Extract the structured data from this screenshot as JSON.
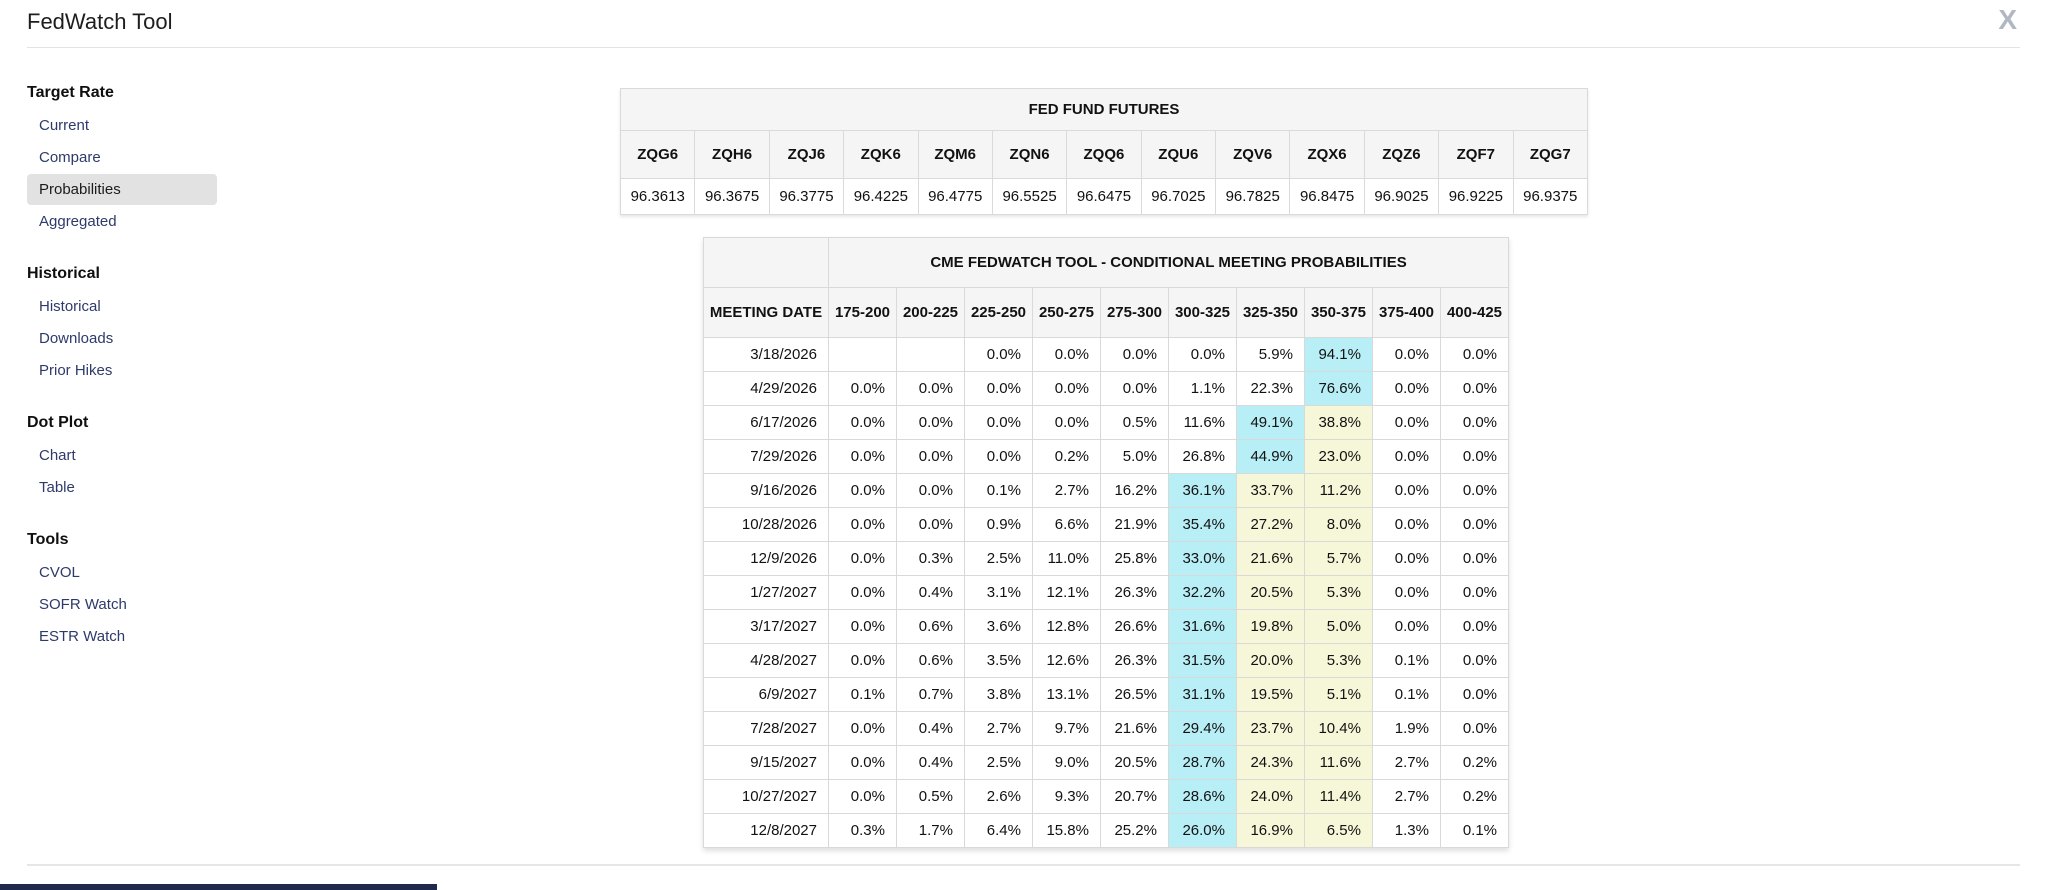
{
  "header": {
    "title": "FedWatch Tool",
    "close_label": "X"
  },
  "sidebar": {
    "sections": [
      {
        "heading": "Target Rate",
        "items": [
          {
            "label": "Current",
            "active": false
          },
          {
            "label": "Compare",
            "active": false
          },
          {
            "label": "Probabilities",
            "active": true
          },
          {
            "label": "Aggregated",
            "active": false
          }
        ]
      },
      {
        "heading": "Historical",
        "items": [
          {
            "label": "Historical",
            "active": false
          },
          {
            "label": "Downloads",
            "active": false
          },
          {
            "label": "Prior Hikes",
            "active": false
          }
        ]
      },
      {
        "heading": "Dot Plot",
        "items": [
          {
            "label": "Chart",
            "active": false
          },
          {
            "label": "Table",
            "active": false
          }
        ]
      },
      {
        "heading": "Tools",
        "items": [
          {
            "label": "CVOL",
            "active": false
          },
          {
            "label": "SOFR Watch",
            "active": false
          },
          {
            "label": "ESTR Watch",
            "active": false
          }
        ]
      }
    ]
  },
  "futures": {
    "title": "FED FUND FUTURES",
    "contracts": [
      "ZQG6",
      "ZQH6",
      "ZQJ6",
      "ZQK6",
      "ZQM6",
      "ZQN6",
      "ZQQ6",
      "ZQU6",
      "ZQV6",
      "ZQX6",
      "ZQZ6",
      "ZQF7",
      "ZQG7"
    ],
    "prices": [
      "96.3613",
      "96.3675",
      "96.3775",
      "96.4225",
      "96.4775",
      "96.5525",
      "96.6475",
      "96.7025",
      "96.7825",
      "96.8475",
      "96.9025",
      "96.9225",
      "96.9375"
    ]
  },
  "probabilities": {
    "title": "CME FEDWATCH TOOL - CONDITIONAL MEETING PROBABILITIES",
    "date_header": "MEETING DATE",
    "range_headers": [
      "175-200",
      "200-225",
      "225-250",
      "250-275",
      "275-300",
      "300-325",
      "325-350",
      "350-375",
      "375-400",
      "400-425"
    ],
    "rows": [
      {
        "date": "3/18/2026",
        "values": [
          "",
          "",
          "0.0%",
          "0.0%",
          "0.0%",
          "0.0%",
          "5.9%",
          "94.1%",
          "0.0%",
          "0.0%"
        ],
        "highlights": [
          "",
          "",
          "",
          "",
          "",
          "",
          "",
          "cyan",
          "",
          ""
        ]
      },
      {
        "date": "4/29/2026",
        "values": [
          "0.0%",
          "0.0%",
          "0.0%",
          "0.0%",
          "0.0%",
          "1.1%",
          "22.3%",
          "76.6%",
          "0.0%",
          "0.0%"
        ],
        "highlights": [
          "",
          "",
          "",
          "",
          "",
          "",
          "",
          "cyan",
          "",
          ""
        ]
      },
      {
        "date": "6/17/2026",
        "values": [
          "0.0%",
          "0.0%",
          "0.0%",
          "0.0%",
          "0.5%",
          "11.6%",
          "49.1%",
          "38.8%",
          "0.0%",
          "0.0%"
        ],
        "highlights": [
          "",
          "",
          "",
          "",
          "",
          "",
          "cyan",
          "yellow",
          "",
          ""
        ]
      },
      {
        "date": "7/29/2026",
        "values": [
          "0.0%",
          "0.0%",
          "0.0%",
          "0.2%",
          "5.0%",
          "26.8%",
          "44.9%",
          "23.0%",
          "0.0%",
          "0.0%"
        ],
        "highlights": [
          "",
          "",
          "",
          "",
          "",
          "",
          "cyan",
          "yellow",
          "",
          ""
        ]
      },
      {
        "date": "9/16/2026",
        "values": [
          "0.0%",
          "0.0%",
          "0.1%",
          "2.7%",
          "16.2%",
          "36.1%",
          "33.7%",
          "11.2%",
          "0.0%",
          "0.0%"
        ],
        "highlights": [
          "",
          "",
          "",
          "",
          "",
          "cyan",
          "yellow",
          "yellow",
          "",
          ""
        ]
      },
      {
        "date": "10/28/2026",
        "values": [
          "0.0%",
          "0.0%",
          "0.9%",
          "6.6%",
          "21.9%",
          "35.4%",
          "27.2%",
          "8.0%",
          "0.0%",
          "0.0%"
        ],
        "highlights": [
          "",
          "",
          "",
          "",
          "",
          "cyan",
          "yellow",
          "yellow",
          "",
          ""
        ]
      },
      {
        "date": "12/9/2026",
        "values": [
          "0.0%",
          "0.3%",
          "2.5%",
          "11.0%",
          "25.8%",
          "33.0%",
          "21.6%",
          "5.7%",
          "0.0%",
          "0.0%"
        ],
        "highlights": [
          "",
          "",
          "",
          "",
          "",
          "cyan",
          "yellow",
          "yellow",
          "",
          ""
        ]
      },
      {
        "date": "1/27/2027",
        "values": [
          "0.0%",
          "0.4%",
          "3.1%",
          "12.1%",
          "26.3%",
          "32.2%",
          "20.5%",
          "5.3%",
          "0.0%",
          "0.0%"
        ],
        "highlights": [
          "",
          "",
          "",
          "",
          "",
          "cyan",
          "yellow",
          "yellow",
          "",
          ""
        ]
      },
      {
        "date": "3/17/2027",
        "values": [
          "0.0%",
          "0.6%",
          "3.6%",
          "12.8%",
          "26.6%",
          "31.6%",
          "19.8%",
          "5.0%",
          "0.0%",
          "0.0%"
        ],
        "highlights": [
          "",
          "",
          "",
          "",
          "",
          "cyan",
          "yellow",
          "yellow",
          "",
          ""
        ]
      },
      {
        "date": "4/28/2027",
        "values": [
          "0.0%",
          "0.6%",
          "3.5%",
          "12.6%",
          "26.3%",
          "31.5%",
          "20.0%",
          "5.3%",
          "0.1%",
          "0.0%"
        ],
        "highlights": [
          "",
          "",
          "",
          "",
          "",
          "cyan",
          "yellow",
          "yellow",
          "",
          ""
        ]
      },
      {
        "date": "6/9/2027",
        "values": [
          "0.1%",
          "0.7%",
          "3.8%",
          "13.1%",
          "26.5%",
          "31.1%",
          "19.5%",
          "5.1%",
          "0.1%",
          "0.0%"
        ],
        "highlights": [
          "",
          "",
          "",
          "",
          "",
          "cyan",
          "yellow",
          "yellow",
          "",
          ""
        ]
      },
      {
        "date": "7/28/2027",
        "values": [
          "0.0%",
          "0.4%",
          "2.7%",
          "9.7%",
          "21.6%",
          "29.4%",
          "23.7%",
          "10.4%",
          "1.9%",
          "0.0%"
        ],
        "highlights": [
          "",
          "",
          "",
          "",
          "",
          "cyan",
          "yellow",
          "yellow",
          "",
          ""
        ]
      },
      {
        "date": "9/15/2027",
        "values": [
          "0.0%",
          "0.4%",
          "2.5%",
          "9.0%",
          "20.5%",
          "28.7%",
          "24.3%",
          "11.6%",
          "2.7%",
          "0.2%"
        ],
        "highlights": [
          "",
          "",
          "",
          "",
          "",
          "cyan",
          "yellow",
          "yellow",
          "",
          ""
        ]
      },
      {
        "date": "10/27/2027",
        "values": [
          "0.0%",
          "0.5%",
          "2.6%",
          "9.3%",
          "20.7%",
          "28.6%",
          "24.0%",
          "11.4%",
          "2.7%",
          "0.2%"
        ],
        "highlights": [
          "",
          "",
          "",
          "",
          "",
          "cyan",
          "yellow",
          "yellow",
          "",
          ""
        ]
      },
      {
        "date": "12/8/2027",
        "values": [
          "0.3%",
          "1.7%",
          "6.4%",
          "15.8%",
          "25.2%",
          "26.0%",
          "16.9%",
          "6.5%",
          "1.3%",
          "0.1%"
        ],
        "highlights": [
          "",
          "",
          "",
          "",
          "",
          "cyan",
          "yellow",
          "yellow",
          "",
          ""
        ]
      }
    ]
  },
  "colors": {
    "highlight_cyan": "#b8eef6",
    "highlight_yellow": "#f6f6d9",
    "header_gray": "#f5f5f5",
    "link_navy": "#2e3a69",
    "active_item_gray": "#e2e2e2",
    "bottom_bar_navy": "#20294d"
  }
}
